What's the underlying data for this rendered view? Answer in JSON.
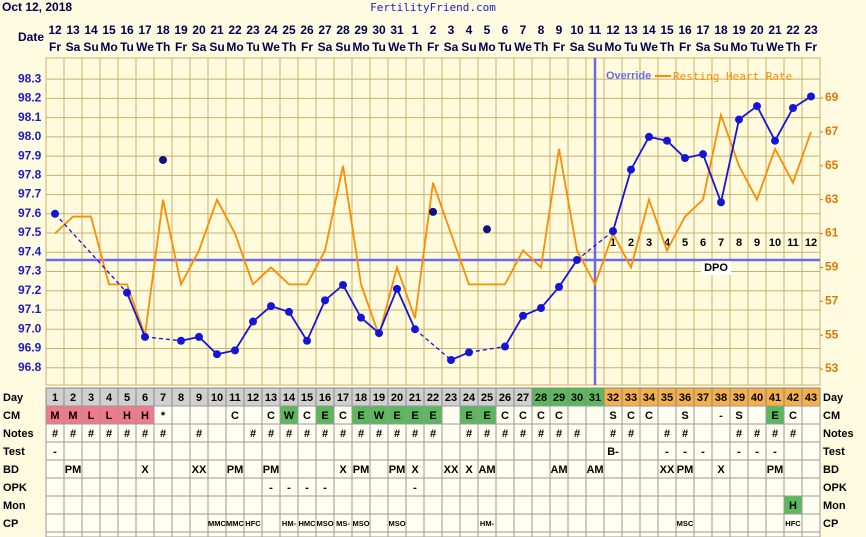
{
  "header": {
    "date": "Oct 12, 2018",
    "site": "FertilityFriend.com",
    "date_label": "Date"
  },
  "chart_data": {
    "type": "line",
    "dates": [
      "12",
      "13",
      "14",
      "15",
      "16",
      "17",
      "18",
      "19",
      "20",
      "21",
      "22",
      "23",
      "24",
      "25",
      "26",
      "27",
      "28",
      "29",
      "30",
      "31",
      "1",
      "2",
      "3",
      "4",
      "5",
      "6",
      "7",
      "8",
      "9",
      "10",
      "11",
      "12",
      "13",
      "14",
      "15",
      "16",
      "17",
      "18",
      "19",
      "20",
      "21",
      "22",
      "23"
    ],
    "weekdays": [
      "Fr",
      "Sa",
      "Su",
      "Mo",
      "Tu",
      "We",
      "Th",
      "Fr",
      "Sa",
      "Su",
      "Mo",
      "Tu",
      "We",
      "Th",
      "Fr",
      "Sa",
      "Su",
      "Mo",
      "Tu",
      "We",
      "Th",
      "Fr",
      "Sa",
      "Su",
      "Mo",
      "Tu",
      "We",
      "Th",
      "Fr",
      "Sa",
      "Su",
      "Mo",
      "Tu",
      "We",
      "Th",
      "Fr",
      "Sa",
      "Su",
      "Mo",
      "Tu",
      "We",
      "Th",
      "Fr"
    ],
    "categories": [
      1,
      2,
      3,
      4,
      5,
      6,
      7,
      8,
      9,
      10,
      11,
      12,
      13,
      14,
      15,
      16,
      17,
      18,
      19,
      20,
      21,
      22,
      23,
      24,
      25,
      26,
      27,
      28,
      29,
      30,
      31,
      32,
      33,
      34,
      35,
      36,
      37,
      38,
      39,
      40,
      41,
      42,
      43
    ],
    "ylim": [
      96.71,
      98.41
    ],
    "yticks": [
      96.8,
      96.9,
      {
        "value": 97,
        "label": "97.0"
      },
      97.1,
      97.2,
      97.3,
      97.4,
      97.5,
      97.6,
      97.7,
      97.8,
      97.9,
      {
        "value": 98,
        "label": "98.0"
      },
      98.1,
      98.2,
      98.3
    ],
    "y2lim": [
      52.06,
      71.36
    ],
    "y2ticks": [
      53,
      55,
      57,
      59,
      61,
      63,
      65,
      67,
      69
    ],
    "grid": true,
    "series": [
      {
        "name": "Override",
        "color": "#1515d8",
        "values": [
          97.6,
          null,
          null,
          null,
          97.19,
          96.96,
          null,
          96.94,
          96.96,
          96.87,
          96.89,
          97.04,
          97.12,
          97.09,
          96.94,
          97.15,
          97.23,
          97.06,
          96.98,
          97.21,
          97.0,
          null,
          96.84,
          96.88,
          null,
          96.91,
          97.07,
          97.11,
          97.22,
          97.36,
          null,
          97.51,
          97.83,
          98.0,
          97.98,
          97.89,
          97.91,
          97.66,
          98.09,
          98.16,
          97.98,
          98.15,
          98.21
        ]
      },
      {
        "name": "Resting Heart Rate",
        "color": "#ff8c00",
        "axis": "y2",
        "values": [
          61,
          62,
          62,
          58,
          58,
          55,
          63,
          58,
          60,
          63,
          61,
          58,
          59,
          58,
          58,
          60,
          65,
          58,
          55,
          59,
          56,
          64,
          61,
          58,
          58,
          58,
          60,
          59,
          66,
          60,
          58,
          61,
          59,
          63,
          60,
          62,
          63,
          68,
          65,
          63,
          66,
          64,
          67
        ]
      }
    ],
    "excluded": {
      "color": "#101080",
      "values": [
        null,
        null,
        null,
        null,
        null,
        null,
        97.88,
        null,
        null,
        null,
        null,
        null,
        null,
        null,
        null,
        null,
        null,
        null,
        null,
        null,
        null,
        97.61,
        null,
        null,
        97.52,
        null,
        null,
        null,
        null,
        null,
        null,
        null,
        null,
        null,
        null,
        null,
        null,
        null,
        null,
        null,
        null,
        null,
        null
      ]
    },
    "coverline": 97.36,
    "ovulation_day": 31,
    "line_color": "#6a6aee",
    "dpo": {
      "label": "DPO",
      "start_day": 32,
      "values": [
        1,
        2,
        3,
        4,
        5,
        6,
        7,
        8,
        9,
        10,
        11,
        12
      ]
    }
  },
  "table": {
    "day_label": "Day",
    "day_fills": [
      {
        "from": 1,
        "to": 27,
        "color": "#d0d0d0"
      },
      {
        "from": 28,
        "to": 31,
        "color": "#5cb85c"
      },
      {
        "from": 32,
        "to": 43,
        "color": "#f5b04a"
      }
    ],
    "rows": [
      {
        "label": "CM",
        "cells": {
          "1": "M",
          "2": "M",
          "3": "L",
          "4": "L",
          "5": "H",
          "6": "H",
          "7": "*",
          "11": "C",
          "13": "C",
          "14": "W",
          "15": "C",
          "16": "E",
          "17": "C",
          "18": "E",
          "19": "W",
          "20": "E",
          "21": "E",
          "22": "E",
          "24": "E",
          "25": "E",
          "26": "C",
          "27": "C",
          "28": "C",
          "29": "C",
          "32": "S",
          "33": "C",
          "34": "C",
          "36": "S",
          "38": "-",
          "39": "S",
          "41": "E",
          "42": "C"
        },
        "fills": {
          "1": "#f07a8a",
          "2": "#f07a8a",
          "3": "#f07a8a",
          "4": "#f07a8a",
          "5": "#f07a8a",
          "6": "#f07a8a",
          "14": "#5cb85c",
          "16": "#5cb85c",
          "18": "#5cb85c",
          "19": "#5cb85c",
          "20": "#5cb85c",
          "21": "#5cb85c",
          "22": "#5cb85c",
          "24": "#5cb85c",
          "25": "#5cb85c",
          "41": "#5cb85c"
        }
      },
      {
        "label": "Notes",
        "cells": {
          "1": "#",
          "2": "#",
          "3": "#",
          "4": "#",
          "5": "#",
          "6": "#",
          "7": "#",
          "9": "#",
          "12": "#",
          "13": "#",
          "14": "#",
          "15": "#",
          "16": "#",
          "17": "#",
          "18": "#",
          "19": "#",
          "20": "#",
          "21": "#",
          "22": "#",
          "24": "#",
          "25": "#",
          "26": "#",
          "27": "#",
          "28": "#",
          "29": "#",
          "30": "#",
          "32": "#",
          "33": "#",
          "35": "#",
          "36": "#",
          "39": "#",
          "40": "#",
          "41": "#",
          "42": "#"
        }
      },
      {
        "label": "Test",
        "cells": {
          "1": "-",
          "32": "B-",
          "35": "-",
          "36": "-",
          "37": "-",
          "39": "-",
          "40": "-",
          "41": "-"
        }
      },
      {
        "label": "BD",
        "cells": {
          "2": "PM",
          "6": "X",
          "9": "XX",
          "11": "PM",
          "13": "PM",
          "17": "X",
          "18": "PM",
          "20": "PM",
          "21": "X",
          "23": "XX",
          "24": "X",
          "25": "AM",
          "29": "AM",
          "31": "AM",
          "35": "XX",
          "36": "PM",
          "38": "X",
          "41": "PM"
        }
      },
      {
        "label": "OPK",
        "cells": {
          "13": "-",
          "14": "-",
          "15": "-",
          "16": "-",
          "21": "-"
        }
      },
      {
        "label": "Mon",
        "cells": {
          "42": "H"
        },
        "fills": {
          "42": "#5cb85c"
        }
      },
      {
        "label": "CP",
        "cells": {
          "10": "MMC",
          "11": "MMC",
          "12": "HFC",
          "14": "HM-",
          "15": "HMC",
          "16": "MSO",
          "17": "MS-",
          "18": "MSO",
          "20": "MSO",
          "25": "HM-",
          "36": "MSC",
          "42": "HFC"
        }
      }
    ]
  }
}
